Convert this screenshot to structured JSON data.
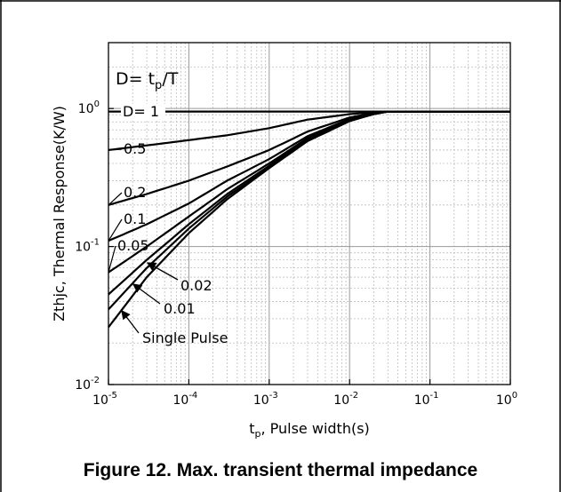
{
  "chart_data": {
    "type": "line",
    "title": "",
    "xlabel": {
      "main": "t",
      "sub": "p",
      "rest": ", Pulse width(s)"
    },
    "ylabel": {
      "main": "Zthjc",
      "rest": ", Thermal Response(K/W)"
    },
    "xscale": "log",
    "yscale": "log",
    "xlim": [
      1e-05,
      1
    ],
    "ylim": [
      0.01,
      3
    ],
    "grid": true,
    "x_ticks": [
      {
        "base": "10",
        "exp": "-5",
        "value": 1e-05
      },
      {
        "base": "10",
        "exp": "-4",
        "value": 0.0001
      },
      {
        "base": "10",
        "exp": "-3",
        "value": 0.001
      },
      {
        "base": "10",
        "exp": "-2",
        "value": 0.01
      },
      {
        "base": "10",
        "exp": "-1",
        "value": 0.1
      },
      {
        "base": "10",
        "exp": "0",
        "value": 1
      }
    ],
    "y_ticks": [
      {
        "base": "10",
        "exp": "0",
        "value": 1
      },
      {
        "base": "10",
        "exp": "-1",
        "value": 0.1
      },
      {
        "base": "10",
        "exp": "-2",
        "value": 0.01
      }
    ],
    "legend_note": {
      "main": "D= t",
      "sub": "p",
      "rest": "/T"
    },
    "series": [
      {
        "name": "D= 1",
        "x": [
          1e-05,
          1
        ],
        "y": [
          0.95,
          0.95
        ]
      },
      {
        "name": "0.5",
        "x": [
          1e-05,
          3e-05,
          0.0001,
          0.0003,
          0.001,
          0.003,
          0.01,
          0.02,
          0.03,
          1
        ],
        "y": [
          0.5,
          0.54,
          0.59,
          0.64,
          0.72,
          0.83,
          0.91,
          0.94,
          0.95,
          0.95
        ]
      },
      {
        "name": "0.2",
        "x": [
          1e-05,
          3e-05,
          0.0001,
          0.0003,
          0.001,
          0.003,
          0.01,
          0.02,
          0.03,
          1
        ],
        "y": [
          0.2,
          0.24,
          0.3,
          0.38,
          0.5,
          0.68,
          0.86,
          0.93,
          0.95,
          0.95
        ]
      },
      {
        "name": "0.1",
        "x": [
          1e-05,
          3e-05,
          0.0001,
          0.0003,
          0.001,
          0.003,
          0.01,
          0.02,
          0.03,
          1
        ],
        "y": [
          0.11,
          0.145,
          0.205,
          0.3,
          0.43,
          0.63,
          0.84,
          0.92,
          0.95,
          0.95
        ]
      },
      {
        "name": "0.05",
        "x": [
          1e-05,
          3e-05,
          0.0001,
          0.0003,
          0.001,
          0.003,
          0.01,
          0.02,
          0.03,
          1
        ],
        "y": [
          0.065,
          0.1,
          0.165,
          0.26,
          0.4,
          0.61,
          0.83,
          0.92,
          0.95,
          0.95
        ]
      },
      {
        "name": "0.02",
        "x": [
          1e-05,
          3e-05,
          0.0001,
          0.0003,
          0.001,
          0.003,
          0.01,
          0.02,
          0.03,
          1
        ],
        "y": [
          0.045,
          0.08,
          0.145,
          0.24,
          0.385,
          0.6,
          0.82,
          0.91,
          0.95,
          0.95
        ]
      },
      {
        "name": "0.01",
        "x": [
          1e-05,
          3e-05,
          0.0001,
          0.0003,
          0.001,
          0.003,
          0.01,
          0.02,
          0.03,
          1
        ],
        "y": [
          0.035,
          0.07,
          0.135,
          0.23,
          0.375,
          0.59,
          0.82,
          0.91,
          0.95,
          0.95
        ]
      },
      {
        "name": "Single Pulse",
        "x": [
          1e-05,
          3e-05,
          0.0001,
          0.0003,
          0.001,
          0.003,
          0.01,
          0.02,
          0.03,
          1
        ],
        "y": [
          0.026,
          0.06,
          0.125,
          0.22,
          0.37,
          0.58,
          0.81,
          0.91,
          0.95,
          0.95
        ]
      }
    ],
    "annotations": [
      {
        "text": "D= 1",
        "series": "D= 1",
        "side": "left",
        "arrow": false
      },
      {
        "text": "0.5",
        "series": "0.5",
        "side": "left",
        "arrow": false
      },
      {
        "text": "0.2",
        "series": "0.2",
        "side": "left",
        "arrow": false
      },
      {
        "text": "0.1",
        "series": "0.1",
        "side": "left",
        "arrow": false
      },
      {
        "text": "0.05",
        "series": "0.05",
        "side": "left",
        "arrow": false
      },
      {
        "text": "0.02",
        "series": "0.02",
        "side": "below-right",
        "arrow": true
      },
      {
        "text": "0.01",
        "series": "0.01",
        "side": "below-right",
        "arrow": true
      },
      {
        "text": "Single Pulse",
        "series": "Single Pulse",
        "side": "below-right",
        "arrow": true
      }
    ]
  },
  "caption": "Figure 12. Max. transient thermal impedance"
}
